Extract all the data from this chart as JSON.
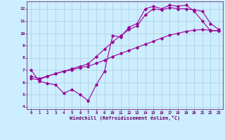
{
  "xlabel": "Windchill (Refroidissement éolien,°C)",
  "ylabel": "",
  "xlim": [
    -0.5,
    23.5
  ],
  "ylim": [
    3.8,
    12.6
  ],
  "xticks": [
    0,
    1,
    2,
    3,
    4,
    5,
    6,
    7,
    8,
    9,
    10,
    11,
    12,
    13,
    14,
    15,
    16,
    17,
    18,
    19,
    20,
    21,
    22,
    23
  ],
  "yticks": [
    4,
    5,
    6,
    7,
    8,
    9,
    10,
    11,
    12
  ],
  "background_color": "#cceeff",
  "grid_color": "#aaccdd",
  "line_color": "#990099",
  "line1_x": [
    0,
    1,
    2,
    3,
    4,
    5,
    6,
    7,
    8,
    9,
    10,
    11,
    12,
    13,
    14,
    15,
    16,
    17,
    18,
    19,
    20,
    21,
    22,
    23
  ],
  "line1_y": [
    7.0,
    6.1,
    5.9,
    5.8,
    5.1,
    5.4,
    5.0,
    4.5,
    5.8,
    6.9,
    9.8,
    9.7,
    10.5,
    10.8,
    12.0,
    12.2,
    12.0,
    12.3,
    12.2,
    12.3,
    11.8,
    11.0,
    10.2,
    10.2
  ],
  "line2_x": [
    0,
    1,
    2,
    3,
    4,
    5,
    6,
    7,
    8,
    9,
    10,
    11,
    12,
    13,
    14,
    15,
    16,
    17,
    18,
    19,
    20,
    21,
    22,
    23
  ],
  "line2_y": [
    6.3,
    6.2,
    6.5,
    6.7,
    6.9,
    7.0,
    7.2,
    7.3,
    7.55,
    7.8,
    8.1,
    8.35,
    8.6,
    8.85,
    9.1,
    9.35,
    9.6,
    9.85,
    10.0,
    10.15,
    10.25,
    10.3,
    10.25,
    10.2
  ],
  "line3_x": [
    0,
    1,
    2,
    3,
    4,
    5,
    6,
    7,
    8,
    9,
    10,
    11,
    12,
    13,
    14,
    15,
    16,
    17,
    18,
    19,
    20,
    21,
    22,
    23
  ],
  "line3_y": [
    6.5,
    6.3,
    6.5,
    6.7,
    6.9,
    7.1,
    7.3,
    7.5,
    8.1,
    8.7,
    9.3,
    9.8,
    10.3,
    10.6,
    11.5,
    12.0,
    11.9,
    12.1,
    12.0,
    12.0,
    11.9,
    11.8,
    10.8,
    10.3
  ]
}
